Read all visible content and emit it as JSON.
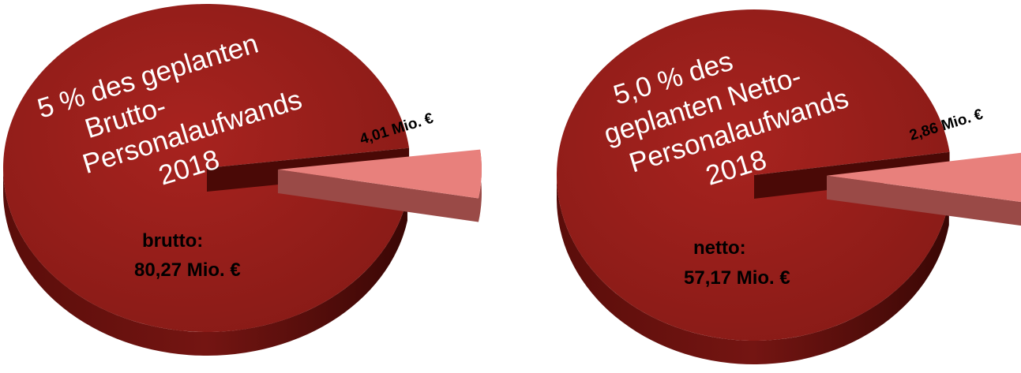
{
  "colors": {
    "main_top": "#9b1e1b",
    "main_top_dark": "#7e1512",
    "main_side": "#6a110e",
    "main_side_dark": "#3c0806",
    "small_top": "#e8807c",
    "small_side": "#9a4a47",
    "inner_wall": "#4a0906"
  },
  "chart_data": [
    {
      "type": "pie",
      "name": "brutto",
      "slices": [
        {
          "label": "brutto:",
          "value_label": "80,27 Mio. €",
          "value": 80.27
        },
        {
          "label": "",
          "value_label": "4,01 Mio. €",
          "value": 4.01,
          "exploded": true
        }
      ],
      "annotation": [
        "5 % des geplanten",
        "Brutto-",
        "Personalaufwands",
        "2018"
      ]
    },
    {
      "type": "pie",
      "name": "netto",
      "slices": [
        {
          "label": "netto:",
          "value_label": "57,17 Mio. €",
          "value": 57.17
        },
        {
          "label": "",
          "value_label": "2,86 Mio. €",
          "value": 2.86,
          "exploded": true
        }
      ],
      "annotation": [
        "5,0 % des",
        "geplanten Netto-",
        "Personalaufwands",
        "2018"
      ]
    }
  ]
}
